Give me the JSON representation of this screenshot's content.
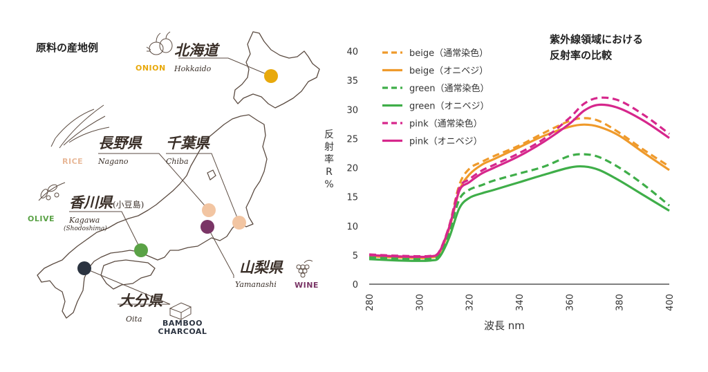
{
  "map": {
    "title": "原料の産地例",
    "places": [
      {
        "id": "hokkaido",
        "jp": "北海道",
        "roman": "Hokkaido",
        "material": "ONION",
        "color": "#e8a90c"
      },
      {
        "id": "nagano",
        "jp": "長野県",
        "roman": "Nagano",
        "material": "RICE",
        "color": "#f2c5a2"
      },
      {
        "id": "chiba",
        "jp": "千葉県",
        "roman": "Chiba",
        "material": "",
        "color": "#f2c5a2"
      },
      {
        "id": "kagawa",
        "jp": "香川県",
        "jp_note": "(小豆島)",
        "roman": "Kagawa",
        "roman_note": "(Shodoshima)",
        "material": "OLIVE",
        "color": "#5aa246"
      },
      {
        "id": "yamanashi",
        "jp": "山梨県",
        "roman": "Yamanashi",
        "material": "WINE",
        "color": "#7a3566"
      },
      {
        "id": "oita",
        "jp": "大分県",
        "roman": "Oita",
        "material": "BAMBOO CHARCOAL",
        "color": "#2b3340"
      }
    ]
  },
  "chart_data": {
    "type": "line",
    "title": "紫外線領域における\n反射率の比較",
    "xlabel": "波長 nm",
    "ylabel": "反射率R%",
    "xlim": [
      280,
      400
    ],
    "ylim": [
      0,
      40
    ],
    "xticks": [
      280,
      300,
      320,
      340,
      360,
      380,
      400
    ],
    "yticks": [
      0,
      5,
      10,
      15,
      20,
      25,
      30,
      35,
      40
    ],
    "legend": "top-left",
    "grid": false,
    "x": [
      280,
      290,
      300,
      305,
      308,
      312,
      316,
      320,
      325,
      330,
      340,
      350,
      360,
      366,
      372,
      380,
      390,
      400
    ],
    "series": [
      {
        "name": "beige（通常染色）",
        "color": "#ef9a2b",
        "dash": true,
        "values": [
          4.9,
          4.7,
          4.6,
          4.7,
          5.5,
          10,
          17,
          19.8,
          21,
          22,
          23.8,
          26,
          28,
          28.5,
          28,
          26,
          23,
          20.2
        ]
      },
      {
        "name": "beige（オニベジ）",
        "color": "#ef9a2b",
        "dash": false,
        "values": [
          4.8,
          4.6,
          4.5,
          4.6,
          5.3,
          9.5,
          16,
          18.8,
          20.5,
          21.5,
          23.5,
          25.5,
          27,
          27.4,
          27,
          25.5,
          22.5,
          19.6
        ]
      },
      {
        "name": "green（通常染色）",
        "color": "#3fae49",
        "dash": true,
        "values": [
          4.6,
          4.4,
          4.3,
          4.4,
          5.0,
          9,
          14.5,
          16.2,
          17,
          17.8,
          19,
          20.2,
          22,
          22.3,
          21.8,
          20,
          17,
          13.5
        ]
      },
      {
        "name": "green（オニベジ）",
        "color": "#3fae49",
        "dash": false,
        "values": [
          4.3,
          4.1,
          4.0,
          4.1,
          4.6,
          8,
          13,
          14.8,
          15.6,
          16.2,
          17.5,
          18.8,
          20,
          20.2,
          19.6,
          17.8,
          15.2,
          12.6
        ]
      },
      {
        "name": "pink（通常染色）",
        "color": "#d6278c",
        "dash": true,
        "values": [
          5.1,
          4.9,
          4.8,
          4.9,
          5.6,
          10,
          16.5,
          18,
          19.5,
          20.5,
          22.5,
          25,
          28.5,
          31,
          32,
          31.5,
          29,
          25.8
        ]
      },
      {
        "name": "pink（オニベジ）",
        "color": "#d6278c",
        "dash": false,
        "values": [
          5.0,
          4.8,
          4.7,
          4.8,
          5.5,
          9.8,
          16,
          17.5,
          19,
          20,
          22,
          24.5,
          27.5,
          29.8,
          30.8,
          30.2,
          28,
          25.1
        ]
      }
    ]
  }
}
